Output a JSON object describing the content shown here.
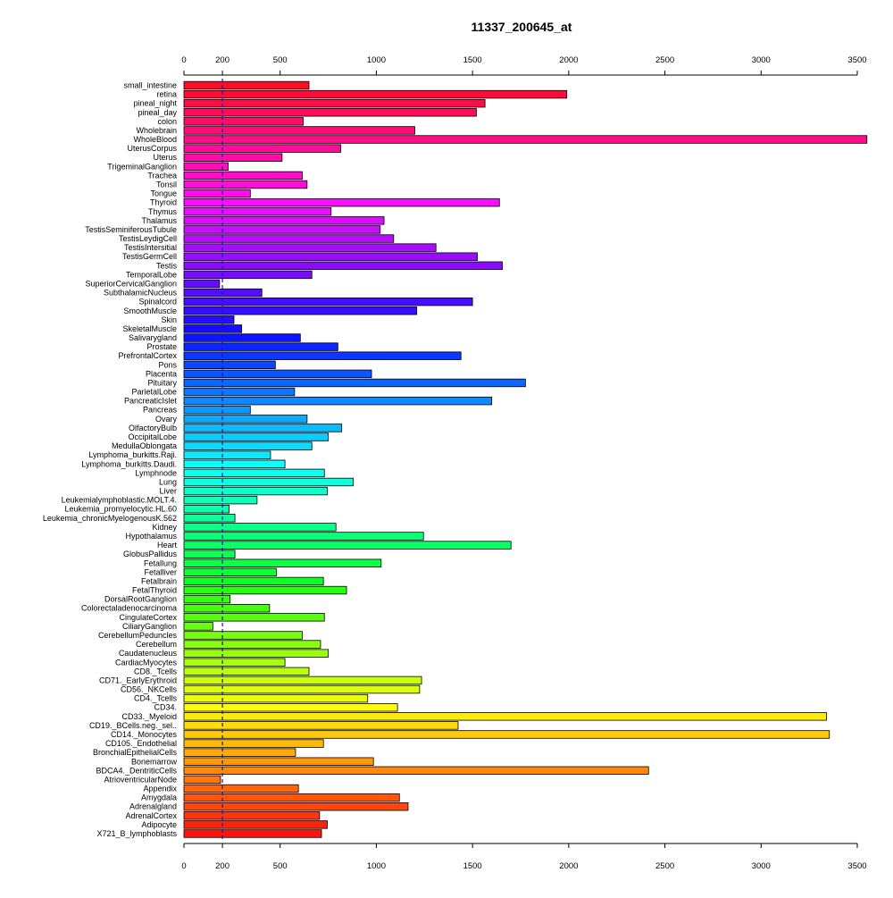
{
  "chart_data": {
    "type": "bar",
    "orientation": "horizontal",
    "title": "11337_200645_at",
    "xlim": [
      0,
      3500
    ],
    "x_ticks": [
      0,
      200,
      500,
      1000,
      1500,
      2000,
      2500,
      3000,
      3500
    ],
    "x_tick_labels": [
      "0",
      "200",
      "500",
      "1000",
      "1500",
      "2000",
      "2500",
      "3000",
      "3500"
    ],
    "reference_line": 200,
    "grid": false,
    "legend": "none",
    "categories": [
      "small_intestine",
      "retina",
      "pineal_night",
      "pineal_day",
      "colon",
      "Wholebrain",
      "WholeBlood",
      "UterusCorpus",
      "Uterus",
      "TrigeminalGanglion",
      "Trachea",
      "Tonsil",
      "Tongue",
      "Thyroid",
      "Thymus",
      "Thalamus",
      "TestisSeminiferousTubule",
      "TestisLeydigCell",
      "TestisIntersitial",
      "TestisGermCell",
      "Testis",
      "TemporalLobe",
      "SuperiorCervicalGanglion",
      "SubthalamicNucleus",
      "Spinalcord",
      "SmoothMuscle",
      "Skin",
      "SkeletalMuscle",
      "Salivarygland",
      "Prostate",
      "PrefrontalCortex",
      "Pons",
      "Placenta",
      "Pituitary",
      "ParietalLobe",
      "PancreaticIslet",
      "Pancreas",
      "Ovary",
      "OlfactoryBulb",
      "OccipitalLobe",
      "MedullaOblongata",
      "Lymphoma_burkitts.Raji.",
      "Lymphoma_burkitts.Daudi.",
      "Lymphnode",
      "Lung",
      "Liver",
      "Leukemialymphoblastic.MOLT.4.",
      "Leukemia_promyelocytic.HL.60",
      "Leukemia_chronicMyelogenousK.562",
      "Kidney",
      "Hypothalamus",
      "Heart",
      "GlobusPallidus",
      "Fetallung",
      "Fetalliver",
      "Fetalbrain",
      "FetalThyroid",
      "DorsalRootGanglion",
      "Colorectaladenocarcinoma",
      "CingulateCortex",
      "CiliaryGanglion",
      "CerebellumPeduncles",
      "Cerebellum",
      "Caudatenucleus",
      "CardiacMyocytes",
      "CD8._Tcells",
      "CD71._EarlyErythroid",
      "CD56._NKCells",
      "CD4._Tcells",
      "CD34.",
      "CD33._Myeloid",
      "CD19._BCells.neg._sel..",
      "CD14._Monocytes",
      "CD105._Endothelial",
      "BronchialEpithelialCells",
      "Bonemarrow",
      "BDCA4._DentriticCells",
      "AtrioventricularNode",
      "Appendix",
      "Amygdala",
      "Adrenalgland",
      "AdrenalCortex",
      "Adipocyte",
      "X721_B_lymphoblasts"
    ],
    "values": [
      650,
      1990,
      1565,
      1520,
      620,
      1200,
      3550,
      815,
      510,
      230,
      615,
      640,
      345,
      1640,
      765,
      1040,
      1020,
      1090,
      1310,
      1525,
      1655,
      665,
      185,
      405,
      1500,
      1210,
      260,
      300,
      605,
      800,
      1440,
      475,
      975,
      1775,
      575,
      1600,
      345,
      640,
      820,
      750,
      665,
      450,
      525,
      730,
      880,
      745,
      380,
      235,
      265,
      790,
      1245,
      1700,
      265,
      1025,
      480,
      725,
      845,
      240,
      445,
      730,
      150,
      615,
      710,
      750,
      525,
      650,
      1235,
      1225,
      955,
      1110,
      3340,
      1425,
      3355,
      725,
      580,
      985,
      2415,
      190,
      595,
      1120,
      1165,
      705,
      745,
      715
    ],
    "colors": [
      "#ff0d26",
      "#ff0d36",
      "#ff0d47",
      "#ff0d57",
      "#ff0d67",
      "#ff0d78",
      "#ff0d88",
      "#ff0d99",
      "#ff0da9",
      "#ff0dba",
      "#ff0dca",
      "#ff0ddb",
      "#ff0deb",
      "#fb0dff",
      "#ea0dff",
      "#da0dff",
      "#ca0dff",
      "#b90dff",
      "#a90dff",
      "#980dff",
      "#880dff",
      "#770dff",
      "#670dff",
      "#560dff",
      "#460dff",
      "#360dff",
      "#250dff",
      "#150dff",
      "#0d15ff",
      "#0d25ff",
      "#0d36ff",
      "#0d46ff",
      "#0d56ff",
      "#0d67ff",
      "#0d77ff",
      "#0d88ff",
      "#0d98ff",
      "#0da9ff",
      "#0db9ff",
      "#0dcaff",
      "#0ddaff",
      "#0deaff",
      "#0dfffb",
      "#0dffeb",
      "#0dffdb",
      "#0dffca",
      "#0dffba",
      "#0dffa9",
      "#0dff99",
      "#0dff88",
      "#0dff78",
      "#0dff67",
      "#0dff57",
      "#0dff47",
      "#0dff36",
      "#0dff26",
      "#26ff0d",
      "#36ff0d",
      "#47ff0d",
      "#57ff0d",
      "#67ff0d",
      "#78ff0d",
      "#88ff0d",
      "#99ff0d",
      "#a9ff0d",
      "#baff0d",
      "#caff0d",
      "#dbff0d",
      "#ebff0d",
      "#fffb0d",
      "#ffea0d",
      "#ffda0d",
      "#ffca0d",
      "#ffb90d",
      "#ffa90d",
      "#ff980d",
      "#ff880d",
      "#ff770d",
      "#ff670d",
      "#ff560d",
      "#ff460d",
      "#ff360d",
      "#ff250d",
      "#ff150d"
    ]
  }
}
